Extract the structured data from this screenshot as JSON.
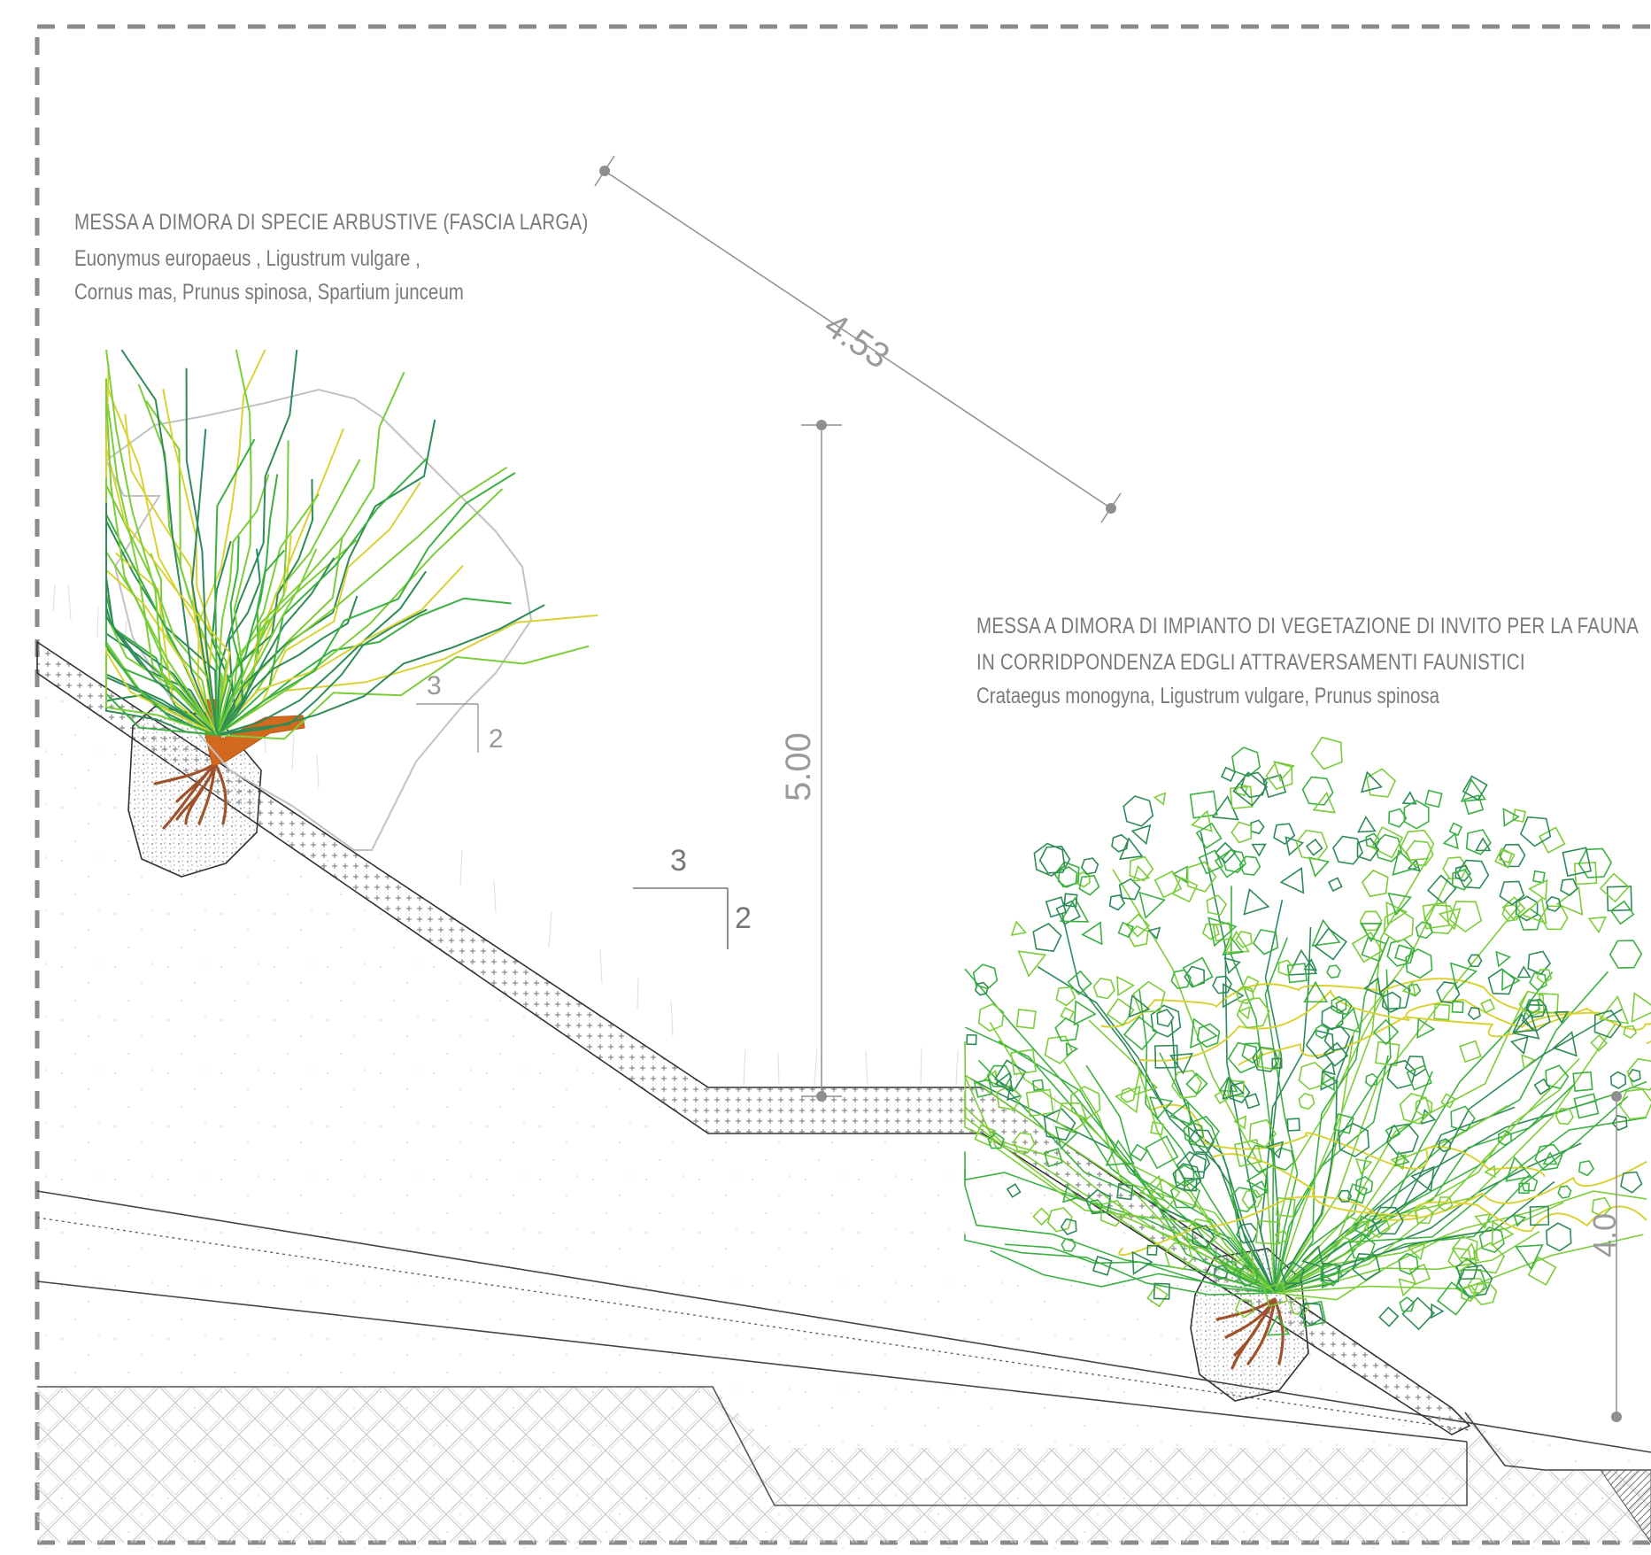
{
  "labels": {
    "shrubs_title": "MESSA A DIMORA DI SPECIE ARBUSTIVE (FASCIA LARGA)",
    "shrubs_species_1": "Euonymus europaeus , Ligustrum vulgare  ,",
    "shrubs_species_2": "Cornus mas, Prunus spinosa, Spartium junceum",
    "fauna_title_1": "MESSA A DIMORA DI IMPIANTO DI VEGETAZIONE DI INVITO PER LA FAUNA",
    "fauna_title_2": "IN CORRIDPONDENZA EDGLI ATTRAVERSAMENTI FAUNISTICI",
    "fauna_species": "Crataegus monogyna, Ligustrum vulgare, Prunus spinosa"
  },
  "dimensions": {
    "slope_length": "4.53",
    "height": "5.00",
    "right_partial": "4.0"
  },
  "slope_ratio": {
    "run": "3",
    "rise": "2"
  },
  "colors": {
    "frame": "#8a8a8a",
    "foliage_dark": "#2e8b57",
    "foliage_mid": "#3cb043",
    "foliage_light": "#7ccd3a",
    "foliage_yellow": "#d9d236",
    "trunk": "#d2691e",
    "roots": "#a0522d",
    "text": "#7a7a7a"
  }
}
